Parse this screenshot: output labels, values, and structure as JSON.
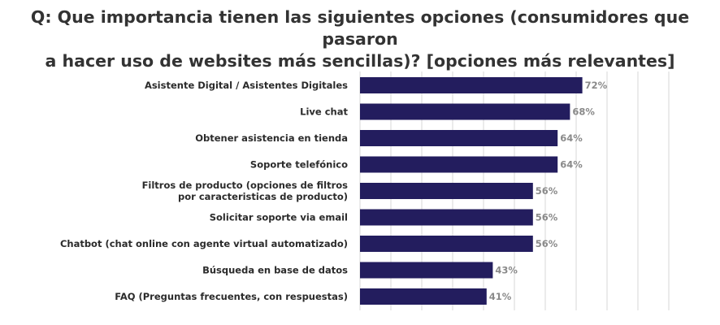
{
  "title": {
    "line1": "Q: Que importancia tienen las siguientes opciones (consumidores que pasaron",
    "line2": "a hacer uso de websites más sencillas)? [opciones más relevantes]"
  },
  "chart_data": {
    "type": "bar",
    "orientation": "horizontal",
    "title": "Q: Que importancia tienen las siguientes opciones (consumidores que pasaron a hacer uso de websites más sencillas)? [opciones más relevantes]",
    "categories": [
      [
        "Asistente Digital / Asistentes Digitales"
      ],
      [
        "Live chat"
      ],
      [
        "Obtener asistencia en tienda"
      ],
      [
        "Soporte telefónico"
      ],
      [
        "Filtros de producto (opciones de filtros",
        "por caracteristicas de producto)"
      ],
      [
        "Solicitar soporte via email"
      ],
      [
        "Chatbot (chat online con agente virtual automatizado)"
      ],
      [
        "Búsqueda en base de datos"
      ],
      [
        "FAQ (Preguntas frecuentes, con respuestas)"
      ]
    ],
    "values": [
      72,
      68,
      64,
      64,
      56,
      56,
      56,
      43,
      41
    ],
    "labels": [
      "72%",
      "68%",
      "64%",
      "64%",
      "56%",
      "56%",
      "56%",
      "43%",
      "41%"
    ],
    "xlim": [
      0,
      100
    ],
    "xlabel": "",
    "ylabel": "",
    "grid": "vertical",
    "bar_color": "#231d5e",
    "grid_color": "#d7d7d7"
  }
}
